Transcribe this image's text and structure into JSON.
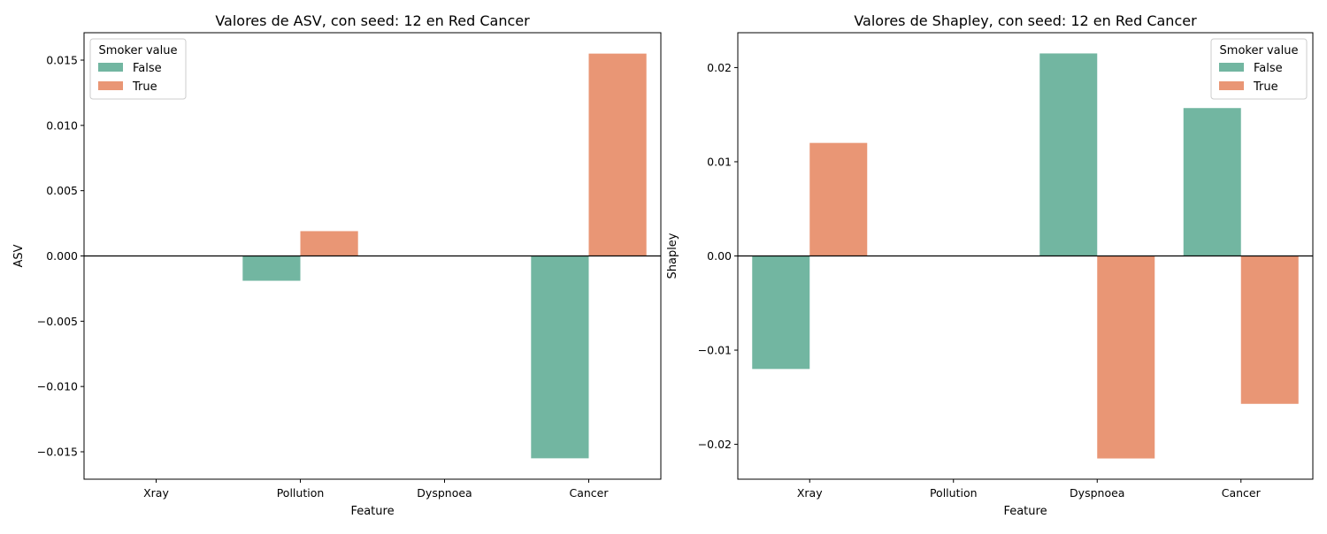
{
  "chart_data": [
    {
      "type": "bar",
      "title": "Valores de ASV, con seed: 12 en Red Cancer",
      "xlabel": "Feature",
      "ylabel": "ASV",
      "categories": [
        "Xray",
        "Pollution",
        "Dyspnoea",
        "Cancer"
      ],
      "series": [
        {
          "name": "False",
          "color": "#72b6a1",
          "values": [
            0.0,
            -0.0019,
            0.0,
            -0.0155
          ]
        },
        {
          "name": "True",
          "color": "#e99675",
          "values": [
            0.0,
            0.0019,
            0.0,
            0.0155
          ]
        }
      ],
      "ylim": [
        -0.0171,
        0.0171
      ],
      "yticks": [
        -0.015,
        -0.01,
        -0.005,
        0.0,
        0.005,
        0.01,
        0.015
      ],
      "ytick_labels": [
        "−0.015",
        "−0.010",
        "−0.005",
        "0.000",
        "0.005",
        "0.010",
        "0.015"
      ],
      "legend": {
        "title": "Smoker value",
        "position": "top-left"
      },
      "grid": false,
      "zero_line": true
    },
    {
      "type": "bar",
      "title": "Valores de Shapley, con seed: 12 en Red Cancer",
      "xlabel": "Feature",
      "ylabel": "Shapley",
      "categories": [
        "Xray",
        "Pollution",
        "Dyspnoea",
        "Cancer"
      ],
      "series": [
        {
          "name": "False",
          "color": "#72b6a1",
          "values": [
            -0.012,
            0.0,
            0.0215,
            0.0157
          ]
        },
        {
          "name": "True",
          "color": "#e99675",
          "values": [
            0.012,
            0.0,
            -0.0215,
            -0.0157
          ]
        }
      ],
      "ylim": [
        -0.0237,
        0.0237
      ],
      "yticks": [
        -0.02,
        -0.01,
        0.0,
        0.01,
        0.02
      ],
      "ytick_labels": [
        "−0.02",
        "−0.01",
        "0.00",
        "0.01",
        "0.02"
      ],
      "legend": {
        "title": "Smoker value",
        "position": "top-right"
      },
      "grid": false,
      "zero_line": true
    }
  ]
}
